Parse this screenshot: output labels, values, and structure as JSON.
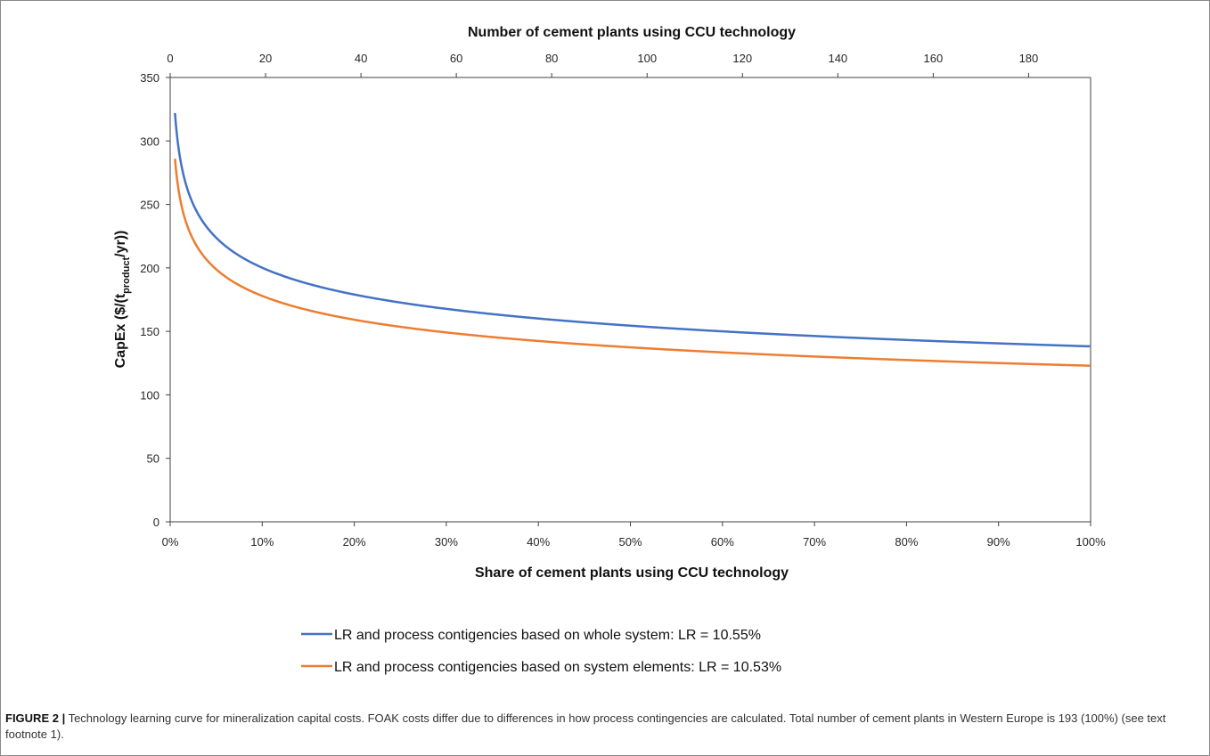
{
  "chart_data": {
    "type": "line",
    "x": {
      "label": "Share of cement plants using CCU technology",
      "ticks": [
        "0%",
        "10%",
        "20%",
        "30%",
        "40%",
        "50%",
        "60%",
        "70%",
        "80%",
        "90%",
        "100%"
      ],
      "range": [
        0,
        100
      ]
    },
    "x2": {
      "label": "Number of cement plants using CCU technology",
      "ticks": [
        "0",
        "20",
        "40",
        "60",
        "80",
        "100",
        "120",
        "140",
        "160",
        "180"
      ],
      "range": [
        0,
        193
      ]
    },
    "y": {
      "label_main": "CapEx ($/(t",
      "label_sub": "product",
      "label_tail": "/yr))",
      "ticks": [
        "0",
        "50",
        "100",
        "150",
        "200",
        "250",
        "300",
        "350"
      ],
      "range": [
        0,
        350
      ]
    },
    "grid": false,
    "legend_position": "bottom",
    "series": [
      {
        "name": "LR and process contigencies based on whole system: LR = 10.55%",
        "color": "#4472C4",
        "first_of_a_kind_value": 322,
        "learning_rate": 0.1055,
        "points": [
          [
            0.52,
            322
          ],
          [
            1,
            286
          ],
          [
            2,
            257
          ],
          [
            3,
            241
          ],
          [
            5,
            222
          ],
          [
            10,
            199
          ],
          [
            15,
            187
          ],
          [
            20,
            178
          ],
          [
            30,
            167
          ],
          [
            40,
            160
          ],
          [
            50,
            154
          ],
          [
            60,
            150
          ],
          [
            70,
            146
          ],
          [
            80,
            143
          ],
          [
            90,
            140
          ],
          [
            100,
            138
          ]
        ]
      },
      {
        "name": "LR and process contigencies based on system elements: LR = 10.53%",
        "color": "#ED7D31",
        "first_of_a_kind_value": 286,
        "learning_rate": 0.1053,
        "points": [
          [
            0.52,
            286
          ],
          [
            1,
            254
          ],
          [
            2,
            228
          ],
          [
            3,
            214
          ],
          [
            5,
            198
          ],
          [
            10,
            177
          ],
          [
            15,
            166
          ],
          [
            20,
            159
          ],
          [
            30,
            149
          ],
          [
            40,
            142
          ],
          [
            50,
            137
          ],
          [
            60,
            133
          ],
          [
            70,
            130
          ],
          [
            80,
            127
          ],
          [
            90,
            125
          ],
          [
            100,
            123
          ]
        ]
      }
    ]
  },
  "caption": {
    "label": "FIGURE 2 |",
    "text": " Technology learning curve for mineralization capital costs. FOAK costs differ due to differences in how process contingencies are calculated. Total number of cement plants in Western Europe is 193 (100%) (see text footnote 1)."
  }
}
